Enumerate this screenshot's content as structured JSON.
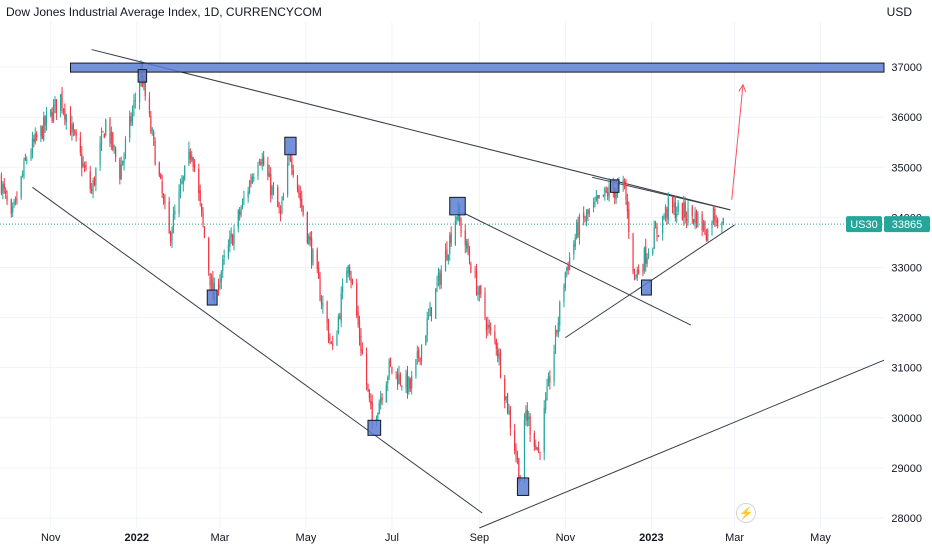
{
  "header": {
    "title": "Dow Jones Industrial Average Index, 1D, CURRENCYCOM",
    "currency": "USD"
  },
  "badge": {
    "symbol": "US30",
    "price": "33865"
  },
  "colors": {
    "up": "#26a69a",
    "down": "#f23645",
    "box_fill": "#5b7fd4",
    "box_stroke": "#131722",
    "trend": "#3a3e4a",
    "arrow": "#f7525f",
    "grid": "#f0f3fa",
    "price_line": "#26a69a"
  },
  "chart_data": {
    "type": "candlestick",
    "y_ticks": [
      "28000",
      "29000",
      "30000",
      "31000",
      "32000",
      "33000",
      "34000",
      "35000",
      "36000",
      "37000"
    ],
    "x_ticks": [
      {
        "label": "Nov",
        "bold": false
      },
      {
        "label": "2022",
        "bold": true
      },
      {
        "label": "Mar",
        "bold": false
      },
      {
        "label": "May",
        "bold": false
      },
      {
        "label": "Jul",
        "bold": false
      },
      {
        "label": "Sep",
        "bold": false
      },
      {
        "label": "Nov",
        "bold": false
      },
      {
        "label": "2023",
        "bold": true
      },
      {
        "label": "Mar",
        "bold": false
      },
      {
        "label": "May",
        "bold": false
      }
    ],
    "ylim": [
      27800,
      37900
    ],
    "xlim": [
      "2021-09-26",
      "2023-06-15"
    ],
    "last_price": 33865,
    "anchors": [
      [
        "2021-09-26",
        34800
      ],
      [
        "2021-10-04",
        33900
      ],
      [
        "2021-10-15",
        35200
      ],
      [
        "2021-11-08",
        36400
      ],
      [
        "2021-11-30",
        34500
      ],
      [
        "2021-12-10",
        35900
      ],
      [
        "2021-12-20",
        34900
      ],
      [
        "2022-01-04",
        36900
      ],
      [
        "2022-01-24",
        33600
      ],
      [
        "2022-02-09",
        35400
      ],
      [
        "2022-02-24",
        32400
      ],
      [
        "2022-03-29",
        35300
      ],
      [
        "2022-04-13",
        34000
      ],
      [
        "2022-04-20",
        35300
      ],
      [
        "2022-05-20",
        31300
      ],
      [
        "2022-05-31",
        33200
      ],
      [
        "2022-06-17",
        29900
      ],
      [
        "2022-06-29",
        31000
      ],
      [
        "2022-07-14",
        30600
      ],
      [
        "2022-08-16",
        34100
      ],
      [
        "2022-09-08",
        31700
      ],
      [
        "2022-09-13",
        31500
      ],
      [
        "2022-09-30",
        28800
      ],
      [
        "2022-10-04",
        30100
      ],
      [
        "2022-10-13",
        29300
      ],
      [
        "2022-11-01",
        32900
      ],
      [
        "2022-11-10",
        33800
      ],
      [
        "2022-12-01",
        34500
      ],
      [
        "2022-12-13",
        34600
      ],
      [
        "2022-12-20",
        32800
      ],
      [
        "2023-01-13",
        34200
      ],
      [
        "2023-02-02",
        34000
      ],
      [
        "2023-02-10",
        33700
      ],
      [
        "2023-02-14",
        34100
      ],
      [
        "2023-02-21",
        33865
      ]
    ],
    "zones": [
      {
        "x1": "2021-11-15",
        "x2": "2023-06-15",
        "y1": 37080,
        "y2": 36900
      },
      {
        "x1": "2022-01-02",
        "x2": "2022-01-08",
        "y1": 36950,
        "y2": 36700
      },
      {
        "x1": "2022-04-16",
        "x2": "2022-04-24",
        "y1": 35600,
        "y2": 35250
      },
      {
        "x1": "2022-02-20",
        "x2": "2022-02-27",
        "y1": 32550,
        "y2": 32250
      },
      {
        "x1": "2022-06-14",
        "x2": "2022-06-23",
        "y1": 29950,
        "y2": 29650
      },
      {
        "x1": "2022-08-11",
        "x2": "2022-08-22",
        "y1": 34400,
        "y2": 34050
      },
      {
        "x1": "2022-09-28",
        "x2": "2022-10-06",
        "y1": 28800,
        "y2": 28450
      },
      {
        "x1": "2022-12-03",
        "x2": "2022-12-09",
        "y1": 34750,
        "y2": 34500
      },
      {
        "x1": "2022-12-25",
        "x2": "2023-01-01",
        "y1": 32750,
        "y2": 32450
      }
    ],
    "trendlines": [
      {
        "d1": "2021-11-30",
        "p1": 37350,
        "d2": "2023-02-26",
        "p2": 34150
      },
      {
        "d1": "2021-10-19",
        "p1": 34600,
        "d2": "2022-09-03",
        "p2": 28100
      },
      {
        "d1": "2022-08-20",
        "p1": 34100,
        "d2": "2023-01-29",
        "p2": 31850
      },
      {
        "d1": "2022-09-01",
        "p1": 27800,
        "d2": "2023-06-15",
        "p2": 31150
      },
      {
        "d1": "2022-11-01",
        "p1": 31600,
        "d2": "2023-03-01",
        "p2": 33850
      },
      {
        "d1": "2022-11-20",
        "p1": 34800,
        "d2": "2023-02-26",
        "p2": 34150
      }
    ],
    "arrow": {
      "d1": "2023-02-27",
      "p1": 34350,
      "d2": "2023-03-07",
      "p2": 36650
    }
  }
}
